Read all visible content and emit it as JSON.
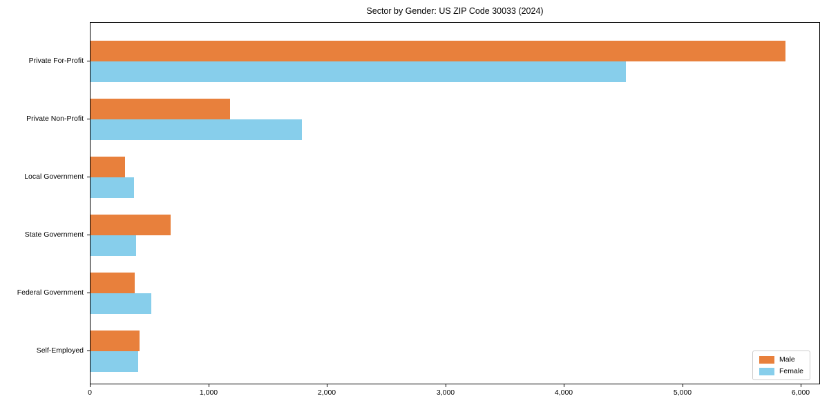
{
  "chart_data": {
    "type": "bar",
    "orientation": "horizontal",
    "title": "Sector by Gender: US ZIP Code 30033 (2024)",
    "categories": [
      "Private For-Profit",
      "Private Non-Profit",
      "Local Government",
      "State Government",
      "Federal Government",
      "Self-Employed"
    ],
    "series": [
      {
        "name": "Male",
        "color": "#e8803c",
        "values": [
          5865,
          1180,
          290,
          675,
          375,
          415
        ]
      },
      {
        "name": "Female",
        "color": "#87ceeb",
        "values": [
          4520,
          1785,
          370,
          385,
          515,
          405
        ]
      }
    ],
    "xlabel": "",
    "ylabel": "",
    "xlim": [
      0,
      6160
    ],
    "xticks": [
      0,
      1000,
      2000,
      3000,
      4000,
      5000,
      6000
    ],
    "xtick_labels": [
      "0",
      "1,000",
      "2,000",
      "3,000",
      "4,000",
      "5,000",
      "6,000"
    ],
    "legend": {
      "position": "lower right",
      "entries": [
        "Male",
        "Female"
      ]
    },
    "grid": false,
    "axis_color": "#000000",
    "background": "#ffffff"
  }
}
